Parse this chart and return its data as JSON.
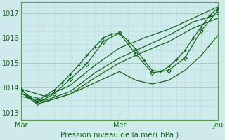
{
  "xlabel": "Pression niveau de la mer( hPa )",
  "xtick_labels": [
    "Mar",
    "Mer",
    "Jeu"
  ],
  "xtick_positions": [
    0,
    12,
    24
  ],
  "ytick_labels": [
    "1013",
    "1014",
    "1015",
    "1016",
    "1017"
  ],
  "ytick_values": [
    1013,
    1014,
    1015,
    1016,
    1017
  ],
  "ylim": [
    1012.7,
    1017.45
  ],
  "xlim": [
    0,
    24
  ],
  "bg_color": "#ceeaea",
  "grid_major_color": "#a8cccc",
  "grid_minor_color": "#b8dcdc",
  "line_color": "#1a6620",
  "series": [
    {
      "x": [
        0,
        1,
        2,
        3,
        4,
        5,
        6,
        7,
        8,
        9,
        10,
        11,
        12,
        13,
        14,
        15,
        16,
        17,
        18,
        19,
        20,
        21,
        22,
        23,
        24
      ],
      "y": [
        1013.95,
        1013.6,
        1013.45,
        1013.7,
        1013.9,
        1014.2,
        1014.55,
        1014.9,
        1015.3,
        1015.65,
        1016.0,
        1016.15,
        1016.2,
        1015.9,
        1015.55,
        1015.1,
        1014.7,
        1014.65,
        1014.85,
        1015.15,
        1015.5,
        1016.0,
        1016.45,
        1016.9,
        1017.2
      ],
      "marker": "P",
      "ms": 3.5
    },
    {
      "x": [
        0,
        2,
        4,
        6,
        8,
        10,
        12,
        14,
        16,
        18,
        20,
        22,
        24
      ],
      "y": [
        1013.9,
        1013.4,
        1013.75,
        1014.35,
        1014.95,
        1015.85,
        1016.2,
        1015.35,
        1014.6,
        1014.7,
        1015.2,
        1016.3,
        1017.1
      ],
      "marker": "D",
      "ms": 3.0
    },
    {
      "x": [
        0,
        3,
        6,
        9,
        12,
        15,
        18,
        21,
        24
      ],
      "y": [
        1013.95,
        1013.65,
        1014.1,
        1014.9,
        1015.6,
        1016.0,
        1016.35,
        1016.8,
        1017.25
      ],
      "marker": null,
      "ms": 0
    },
    {
      "x": [
        0,
        3,
        6,
        9,
        12,
        15,
        18,
        21,
        24
      ],
      "y": [
        1013.75,
        1013.5,
        1013.85,
        1014.6,
        1015.2,
        1015.65,
        1016.1,
        1016.65,
        1016.95
      ],
      "marker": null,
      "ms": 0
    },
    {
      "x": [
        0,
        3,
        6,
        9,
        12,
        15,
        18,
        21,
        24
      ],
      "y": [
        1013.65,
        1013.45,
        1013.75,
        1014.4,
        1015.0,
        1015.45,
        1015.85,
        1016.4,
        1016.8
      ],
      "marker": null,
      "ms": 0
    },
    {
      "x": [
        0,
        2,
        4,
        6,
        8,
        10,
        12,
        14,
        16,
        18,
        20,
        22,
        24
      ],
      "y": [
        1013.8,
        1013.35,
        1013.55,
        1013.75,
        1014.05,
        1014.35,
        1014.65,
        1014.3,
        1014.15,
        1014.3,
        1014.7,
        1015.3,
        1016.1
      ],
      "marker": null,
      "ms": 0
    }
  ]
}
